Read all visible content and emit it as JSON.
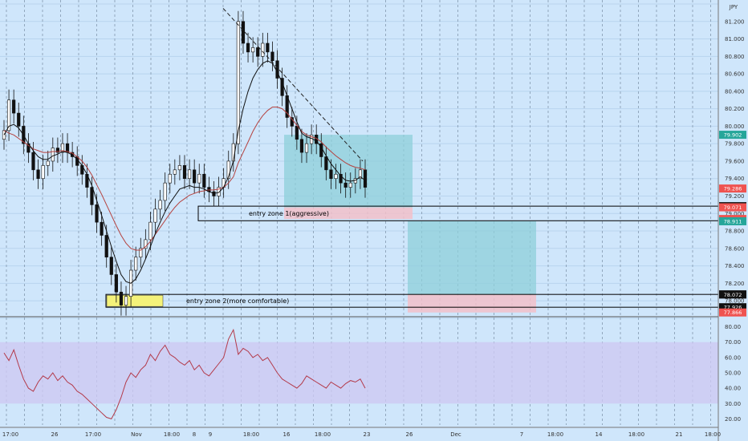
{
  "chart_data": {
    "type": "candlestick",
    "symbol_unit": "JPY",
    "price_axis": {
      "range": [
        77.9,
        81.4
      ],
      "ticks": [
        "81.400",
        "81.200",
        "81.000",
        "80.800",
        "80.600",
        "80.400",
        "80.200",
        "80.000",
        "79.800",
        "79.600",
        "79.400",
        "79.200",
        "79.000",
        "78.800",
        "78.600",
        "78.400",
        "78.200",
        "78.000",
        "77.800"
      ]
    },
    "price_tags": [
      {
        "label": "79.902",
        "value": 79.902,
        "color": "#26a69a"
      },
      {
        "label": "79.286",
        "value": 79.286,
        "color": "#ef5350"
      },
      {
        "label": "79.084",
        "value": 79.084,
        "color": "#111111"
      },
      {
        "label": "79.071",
        "value": 79.071,
        "color": "#ef5350"
      },
      {
        "label": "78.917",
        "value": 78.917,
        "color": "#111111"
      },
      {
        "label": "78.937",
        "value": 78.937,
        "color": "#ef5350"
      },
      {
        "label": "78.911",
        "value": 78.911,
        "color": "#26a69a"
      },
      {
        "label": "78.073",
        "value": 78.073,
        "color": "#111111"
      },
      {
        "label": "78.072",
        "value": 78.072,
        "color": "#111111"
      },
      {
        "label": "77.926",
        "value": 77.926,
        "color": "#111111"
      },
      {
        "label": "77.866",
        "value": 77.866,
        "color": "#ef5350"
      }
    ],
    "time_axis": [
      "17:00",
      "26",
      "17:00",
      "Nov",
      "18:00",
      "8",
      "9",
      "18:00",
      "16",
      "18:00",
      "23",
      "26",
      "Dec",
      "7",
      "18:00",
      "14",
      "18:00",
      "21",
      "18:00"
    ],
    "annotations": [
      {
        "text": "entry zone 1(aggressive)",
        "price_top": 79.084,
        "price_bottom": 78.917
      },
      {
        "text": "entry zone 2(more comfortable)",
        "price_top": 78.073,
        "price_bottom": 77.926
      }
    ],
    "position_boxes": [
      {
        "type": "long",
        "entry": 79.071,
        "target": 79.902,
        "stop": 78.937
      },
      {
        "type": "long",
        "entry": 78.072,
        "target": 78.911,
        "stop": 77.866
      }
    ],
    "close_series": [
      79.95,
      80.3,
      80.15,
      80.0,
      79.8,
      79.7,
      79.5,
      79.4,
      79.55,
      79.6,
      79.75,
      79.7,
      79.8,
      79.7,
      79.65,
      79.55,
      79.45,
      79.3,
      79.1,
      78.9,
      78.75,
      78.5,
      78.3,
      78.1,
      77.95,
      78.05,
      78.35,
      78.5,
      78.6,
      78.7,
      78.9,
      79.05,
      79.15,
      79.35,
      79.45,
      79.5,
      79.55,
      79.4,
      79.5,
      79.35,
      79.45,
      79.3,
      79.25,
      79.2,
      79.3,
      79.4,
      79.6,
      79.8,
      81.2,
      80.95,
      80.85,
      80.9,
      80.8,
      80.95,
      80.85,
      80.75,
      80.55,
      80.35,
      80.1,
      80.0,
      79.85,
      79.7,
      79.8,
      79.9,
      79.8,
      79.65,
      79.5,
      79.4,
      79.45,
      79.35,
      79.3,
      79.35,
      79.4,
      79.5,
      79.3
    ],
    "ma_fast": [
      79.9,
      80.0,
      80.02,
      79.98,
      79.9,
      79.8,
      79.72,
      79.65,
      79.62,
      79.62,
      79.66,
      79.68,
      79.71,
      79.7,
      79.67,
      79.62,
      79.55,
      79.45,
      79.32,
      79.15,
      78.98,
      78.8,
      78.62,
      78.45,
      78.3,
      78.22,
      78.2,
      78.25,
      78.35,
      78.48,
      78.62,
      78.77,
      78.9,
      79.02,
      79.12,
      79.2,
      79.28,
      79.3,
      79.32,
      79.3,
      79.3,
      79.28,
      79.25,
      79.23,
      79.24,
      79.3,
      79.42,
      79.6,
      79.95,
      80.2,
      80.4,
      80.55,
      80.65,
      80.72,
      80.75,
      80.72,
      80.62,
      80.5,
      80.35,
      80.2,
      80.05,
      79.92,
      79.88,
      79.86,
      79.83,
      79.76,
      79.66,
      79.57,
      79.5,
      79.43,
      79.38,
      79.37,
      79.38,
      79.42,
      79.38
    ],
    "ma_slow": [
      79.95,
      79.92,
      79.9,
      79.86,
      79.82,
      79.78,
      79.74,
      79.72,
      79.7,
      79.7,
      79.71,
      79.71,
      79.72,
      79.71,
      79.69,
      79.65,
      79.6,
      79.53,
      79.44,
      79.33,
      79.22,
      79.1,
      78.98,
      78.86,
      78.75,
      78.66,
      78.6,
      78.58,
      78.58,
      78.62,
      78.68,
      78.76,
      78.84,
      78.92,
      79.0,
      79.07,
      79.13,
      79.17,
      79.21,
      79.23,
      79.25,
      79.26,
      79.27,
      79.27,
      79.28,
      79.3,
      79.35,
      79.42,
      79.58,
      79.7,
      79.82,
      79.94,
      80.04,
      80.12,
      80.18,
      80.22,
      80.22,
      80.2,
      80.15,
      80.08,
      80.01,
      79.94,
      79.9,
      79.88,
      79.86,
      79.82,
      79.76,
      79.71,
      79.66,
      79.62,
      79.58,
      79.55,
      79.53,
      79.52,
      79.5
    ],
    "oscillator": {
      "range": [
        15,
        85
      ],
      "ticks": [
        "80.00",
        "70.00",
        "60.00",
        "50.00",
        "40.00",
        "30.00",
        "20.00"
      ],
      "band": [
        30,
        70
      ],
      "values": [
        63,
        58,
        65,
        55,
        46,
        40,
        38,
        44,
        48,
        46,
        50,
        45,
        48,
        44,
        42,
        38,
        36,
        33,
        30,
        27,
        24,
        21,
        20,
        26,
        34,
        44,
        50,
        47,
        52,
        55,
        62,
        58,
        64,
        68,
        62,
        60,
        57,
        55,
        58,
        52,
        55,
        50,
        48,
        52,
        56,
        60,
        72,
        78,
        62,
        66,
        64,
        60,
        62,
        58,
        60,
        55,
        50,
        46,
        44,
        42,
        40,
        43,
        48,
        46,
        44,
        42,
        40,
        44,
        42,
        40,
        43,
        45,
        44,
        46,
        40
      ]
    }
  }
}
